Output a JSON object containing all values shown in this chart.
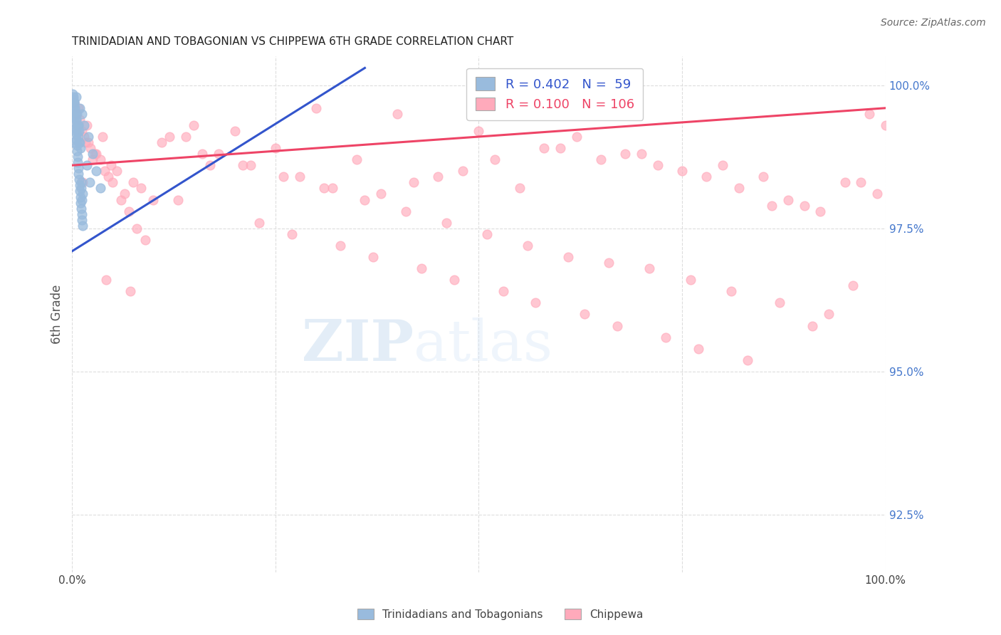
{
  "title": "TRINIDADIAN AND TOBAGONIAN VS CHIPPEWA 6TH GRADE CORRELATION CHART",
  "source": "Source: ZipAtlas.com",
  "ylabel": "6th Grade",
  "right_yticks": [
    92.5,
    95.0,
    97.5,
    100.0
  ],
  "right_yticklabels": [
    "92.5%",
    "95.0%",
    "97.5%",
    "100.0%"
  ],
  "legend_blue_r": "R = 0.402",
  "legend_blue_n": "N =  59",
  "legend_pink_r": "R = 0.100",
  "legend_pink_n": "N = 106",
  "legend_blue_label": "Trinidadians and Tobagonians",
  "legend_pink_label": "Chippewa",
  "blue_color": "#99BBDD",
  "pink_color": "#FFAABB",
  "blue_line_color": "#3355CC",
  "pink_line_color": "#EE4466",
  "watermark_zip": "ZIP",
  "watermark_atlas": "atlas",
  "blue_points_x": [
    0.1,
    0.12,
    0.15,
    0.18,
    0.2,
    0.22,
    0.25,
    0.28,
    0.3,
    0.32,
    0.35,
    0.38,
    0.4,
    0.42,
    0.45,
    0.48,
    0.5,
    0.52,
    0.55,
    0.58,
    0.6,
    0.62,
    0.65,
    0.68,
    0.7,
    0.72,
    0.75,
    0.78,
    0.8,
    0.82,
    0.85,
    0.88,
    0.9,
    0.92,
    0.95,
    0.98,
    1.0,
    1.02,
    1.05,
    1.08,
    1.1,
    1.12,
    1.15,
    1.18,
    1.2,
    1.22,
    1.25,
    1.28,
    1.3,
    1.5,
    1.8,
    2.0,
    2.2,
    2.5,
    3.0,
    3.5,
    0.3,
    0.5,
    0.8
  ],
  "blue_points_y": [
    99.0,
    99.85,
    99.8,
    99.75,
    99.5,
    99.65,
    99.7,
    99.55,
    99.7,
    99.45,
    99.6,
    99.35,
    99.2,
    99.25,
    99.5,
    99.15,
    99.8,
    99.05,
    99.4,
    98.95,
    99.5,
    98.85,
    99.3,
    98.75,
    99.2,
    98.65,
    99.1,
    98.55,
    99.3,
    98.45,
    99.0,
    98.35,
    99.2,
    98.25,
    99.0,
    98.15,
    99.6,
    98.05,
    98.9,
    97.95,
    98.3,
    97.85,
    98.2,
    97.75,
    99.5,
    97.65,
    98.0,
    97.55,
    98.1,
    99.3,
    98.6,
    99.1,
    98.3,
    98.8,
    98.5,
    98.2,
    99.7,
    99.4,
    99.3
  ],
  "pink_points_x": [
    0.3,
    0.5,
    0.7,
    0.8,
    1.0,
    1.2,
    1.5,
    1.7,
    1.8,
    2.0,
    2.3,
    2.5,
    2.8,
    3.0,
    3.5,
    3.8,
    4.0,
    4.5,
    4.8,
    5.0,
    5.5,
    6.0,
    6.5,
    7.0,
    7.5,
    8.0,
    8.5,
    9.0,
    10.0,
    11.0,
    12.0,
    13.0,
    15.0,
    16.0,
    17.0,
    18.0,
    20.0,
    21.0,
    22.0,
    23.0,
    25.0,
    26.0,
    27.0,
    28.0,
    30.0,
    31.0,
    32.0,
    33.0,
    35.0,
    36.0,
    37.0,
    38.0,
    40.0,
    41.0,
    42.0,
    43.0,
    45.0,
    46.0,
    47.0,
    48.0,
    50.0,
    51.0,
    52.0,
    53.0,
    55.0,
    56.0,
    57.0,
    58.0,
    60.0,
    61.0,
    62.0,
    63.0,
    65.0,
    66.0,
    67.0,
    68.0,
    70.0,
    71.0,
    72.0,
    73.0,
    75.0,
    76.0,
    77.0,
    78.0,
    80.0,
    81.0,
    82.0,
    83.0,
    85.0,
    86.0,
    87.0,
    88.0,
    90.0,
    91.0,
    92.0,
    93.0,
    95.0,
    96.0,
    97.0,
    98.0,
    99.0,
    100.0,
    1.3,
    4.2,
    7.2,
    14.0
  ],
  "pink_points_y": [
    99.7,
    99.5,
    99.3,
    99.6,
    99.4,
    99.2,
    99.1,
    99.0,
    99.3,
    99.0,
    98.9,
    98.7,
    98.8,
    98.8,
    98.7,
    99.1,
    98.5,
    98.4,
    98.6,
    98.3,
    98.5,
    98.0,
    98.1,
    97.8,
    98.3,
    97.5,
    98.2,
    97.3,
    98.0,
    99.0,
    99.1,
    98.0,
    99.3,
    98.8,
    98.6,
    98.8,
    99.2,
    98.6,
    98.6,
    97.6,
    98.9,
    98.4,
    97.4,
    98.4,
    99.6,
    98.2,
    98.2,
    97.2,
    98.7,
    98.0,
    97.0,
    98.1,
    99.5,
    97.8,
    98.3,
    96.8,
    98.4,
    97.6,
    96.6,
    98.5,
    99.2,
    97.4,
    98.7,
    96.4,
    98.2,
    97.2,
    96.2,
    98.9,
    98.9,
    97.0,
    99.1,
    96.0,
    98.7,
    96.9,
    95.8,
    98.8,
    98.8,
    96.8,
    98.6,
    95.6,
    98.5,
    96.6,
    95.4,
    98.4,
    98.6,
    96.4,
    98.2,
    95.2,
    98.4,
    97.9,
    96.2,
    98.0,
    97.9,
    95.8,
    97.8,
    96.0,
    98.3,
    96.5,
    98.3,
    99.5,
    98.1,
    99.3,
    98.3,
    96.6,
    96.4,
    99.1
  ],
  "xlim": [
    0,
    100
  ],
  "ylim_bottom": 91.5,
  "ylim_top": 100.5,
  "blue_line_x": [
    0.0,
    36.0
  ],
  "blue_line_y": [
    97.1,
    100.3
  ],
  "pink_line_x": [
    0.0,
    100.0
  ],
  "pink_line_y": [
    98.6,
    99.6
  ]
}
